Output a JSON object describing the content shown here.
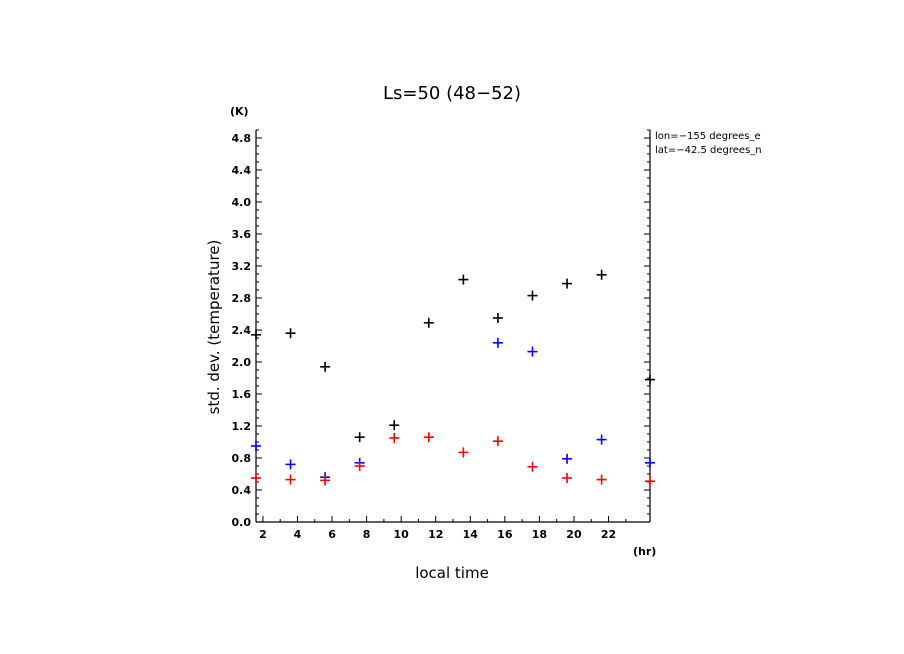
{
  "chart_data": {
    "type": "scatter",
    "title": "Ls=50 (48−52)",
    "xlabel": "local time",
    "ylabel": "std. dev. (temperature)",
    "x_unit": "(hr)",
    "y_unit": "(K)",
    "xlim": [
      1.6,
      24.4
    ],
    "ylim": [
      0.0,
      4.9
    ],
    "x_ticks": [
      2,
      4,
      6,
      8,
      10,
      12,
      14,
      16,
      18,
      20,
      22
    ],
    "y_ticks": [
      "0.0",
      "0.4",
      "0.8",
      "1.2",
      "1.6",
      "2.0",
      "2.4",
      "2.8",
      "3.2",
      "3.6",
      "4.0",
      "4.4",
      "4.8"
    ],
    "annotations": [
      "lon=−155 degrees_e",
      "lat=−42.5 degrees_n"
    ],
    "series": [
      {
        "color": "#000000",
        "points": [
          [
            1.6,
            2.34
          ],
          [
            3.6,
            2.36
          ],
          [
            5.6,
            1.94
          ],
          [
            7.6,
            1.06
          ],
          [
            9.6,
            1.21
          ],
          [
            11.6,
            2.49
          ],
          [
            13.6,
            3.03
          ],
          [
            15.6,
            2.55
          ],
          [
            17.6,
            2.83
          ],
          [
            19.6,
            2.98
          ],
          [
            21.6,
            3.09
          ],
          [
            24.4,
            1.78
          ]
        ]
      },
      {
        "color": "#0000ff",
        "points": [
          [
            1.6,
            0.95
          ],
          [
            3.6,
            0.72
          ],
          [
            5.6,
            0.56
          ],
          [
            7.6,
            0.74
          ],
          [
            15.6,
            2.24
          ],
          [
            17.6,
            2.13
          ],
          [
            19.6,
            0.79
          ],
          [
            21.6,
            1.03
          ],
          [
            24.4,
            0.74
          ]
        ]
      },
      {
        "color": "#ff0000",
        "points": [
          [
            1.6,
            0.55
          ],
          [
            3.6,
            0.53
          ],
          [
            5.6,
            0.52
          ],
          [
            7.6,
            0.7
          ],
          [
            9.6,
            1.05
          ],
          [
            11.6,
            1.06
          ],
          [
            13.6,
            0.87
          ],
          [
            15.6,
            1.01
          ],
          [
            17.6,
            0.69
          ],
          [
            19.6,
            0.55
          ],
          [
            21.6,
            0.53
          ],
          [
            24.4,
            0.51
          ]
        ]
      }
    ]
  }
}
